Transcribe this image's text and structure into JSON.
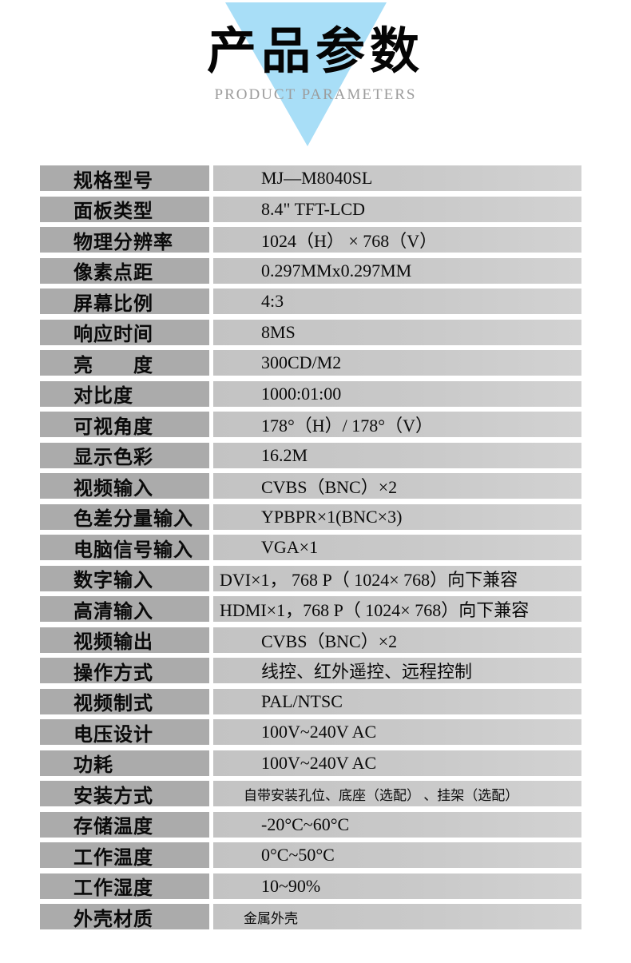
{
  "header": {
    "title": "产品参数",
    "subtitle": "PRODUCT PARAMETERS"
  },
  "colors": {
    "triangle_blue": "#a8def7",
    "subtitle_gray": "#9c9c9c",
    "label_cell_bg": "#ababab",
    "value_cell_bg": "#c6c6c6",
    "text": "#0a0a0a"
  },
  "table": {
    "rows": [
      {
        "label": "规格型号",
        "value": "MJ—M8040SL"
      },
      {
        "label": "面板类型",
        "value": "8.4\" TFT-LCD"
      },
      {
        "label": "物理分辨率",
        "value": "1024（H） ×  768（V）"
      },
      {
        "label": "像素点距",
        "value": "0.297MMx0.297MM"
      },
      {
        "label": "屏幕比例",
        "value": "4:3"
      },
      {
        "label": "响应时间",
        "value": "8MS"
      },
      {
        "label": "亮　　度",
        "value": "300CD/M2"
      },
      {
        "label": "对比度",
        "value": "1000:01:00"
      },
      {
        "label": "可视角度",
        "value": "178°（H）/ 178°（V）"
      },
      {
        "label": "显示色彩",
        "value": "16.2M"
      },
      {
        "label": "视频输入",
        "value": "CVBS（BNC）×2"
      },
      {
        "label": "色差分量输入",
        "value": "YPBPR×1(BNC×3)"
      },
      {
        "label": "电脑信号输入",
        "value": "VGA×1"
      },
      {
        "label": "数字输入",
        "value": "DVI×1， 768 P（ 1024×  768）向下兼容",
        "flush": true
      },
      {
        "label": "高清输入",
        "value": "HDMI×1，768 P（ 1024×  768）向下兼容",
        "flush": true
      },
      {
        "label": "视频输出",
        "value": "CVBS（BNC）×2"
      },
      {
        "label": "操作方式",
        "value": "线控、红外遥控、远程控制"
      },
      {
        "label": "视频制式",
        "value": "PAL/NTSC"
      },
      {
        "label": "电压设计",
        "value": "100V~240V AC"
      },
      {
        "label": "功耗",
        "value": "100V~240V AC"
      },
      {
        "label": "安装方式",
        "value": "自带安装孔位、底座（选配） 、挂架（选配）",
        "small": true
      },
      {
        "label": "存储温度",
        "value": "-20°C~60°C"
      },
      {
        "label": "工作温度",
        "value": "0°C~50°C"
      },
      {
        "label": "工作湿度",
        "value": "10~90%"
      },
      {
        "label": "外壳材质",
        "value": "金属外壳",
        "small": true
      }
    ]
  }
}
